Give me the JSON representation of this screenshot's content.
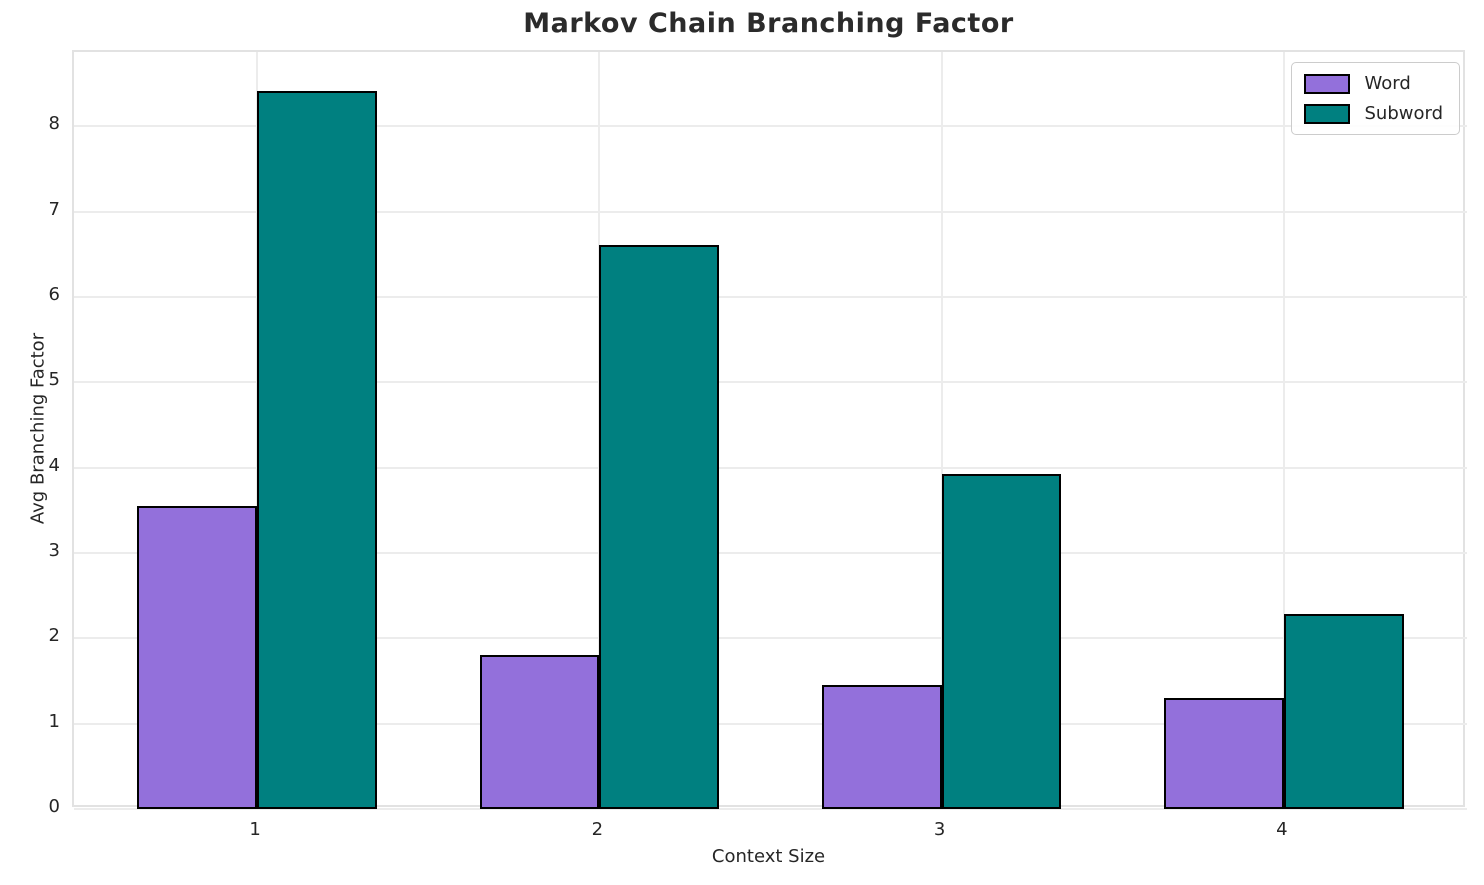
{
  "title": "Markov Chain Branching Factor",
  "chart_data": {
    "type": "bar",
    "title": "Markov Chain Branching Factor",
    "xlabel": "Context Size",
    "ylabel": "Avg Branching Factor",
    "categories": [
      "1",
      "2",
      "3",
      "4"
    ],
    "series": [
      {
        "name": "Word",
        "color": "#9370DB",
        "values": [
          3.55,
          1.81,
          1.45,
          1.3
        ]
      },
      {
        "name": "Subword",
        "color": "#008080",
        "values": [
          8.41,
          6.61,
          3.93,
          2.29
        ]
      }
    ],
    "bar_edge_color": "#000000",
    "bar_width": 0.35,
    "xlim": [
      -0.535,
      3.535
    ],
    "ylim": [
      0,
      8.87
    ],
    "yticks": [
      0,
      1,
      2,
      3,
      4,
      5,
      6,
      7,
      8
    ],
    "grid": true,
    "grid_color": "#ececec",
    "legend_position": "upper right",
    "text_color": "#262626"
  },
  "legend": {
    "items": [
      {
        "label": "Word",
        "color": "#9370DB"
      },
      {
        "label": "Subword",
        "color": "#008080"
      }
    ]
  }
}
